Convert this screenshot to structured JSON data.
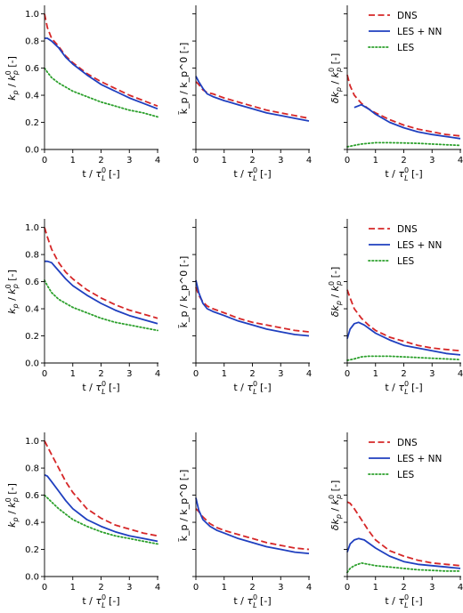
{
  "chart_data": {
    "type": "line",
    "layout": "3x3 grid of line plots",
    "series_styles": {
      "DNS": {
        "color": "#d62728",
        "dash": "dashed"
      },
      "LES + NN": {
        "color": "#1f3fbf",
        "dash": "solid"
      },
      "LES": {
        "color": "#2ca02c",
        "dash": "dotted"
      }
    },
    "legend": {
      "entries": [
        "DNS",
        "LES + NN",
        "LES"
      ],
      "placement": "top-right of right column"
    },
    "xlabel": "t / τ_L^0 [-]",
    "xlim": [
      0,
      4
    ],
    "xticks": [
      "0",
      "1",
      "2",
      "3",
      "4"
    ],
    "columns": [
      {
        "ylabel": "k_p / k_p^0 [-]",
        "ylim": [
          0,
          1.05
        ],
        "yticks": [
          "0.0",
          "0.2",
          "0.4",
          "0.6",
          "0.8",
          "1.0"
        ]
      },
      {
        "ylabel": "k̃_p / k_p^0 [-]",
        "ylim": [
          0,
          1.05
        ],
        "yticks": []
      },
      {
        "ylabel": "δk_p / k_p^0 [-]",
        "ylim": [
          0,
          1.05
        ],
        "yticks": []
      }
    ],
    "panels": [
      {
        "row": 0,
        "col": 0,
        "series": [
          {
            "name": "DNS",
            "x": [
              0,
              0.1,
              0.25,
              0.5,
              0.75,
              1,
              1.5,
              2,
              2.5,
              3,
              3.5,
              4
            ],
            "y": [
              1.0,
              0.9,
              0.82,
              0.76,
              0.69,
              0.64,
              0.56,
              0.5,
              0.45,
              0.4,
              0.36,
              0.32
            ]
          },
          {
            "name": "LES + NN",
            "x": [
              0,
              0.1,
              0.25,
              0.5,
              0.75,
              1,
              1.5,
              2,
              2.5,
              3,
              3.5,
              4
            ],
            "y": [
              0.82,
              0.82,
              0.8,
              0.75,
              0.68,
              0.63,
              0.55,
              0.48,
              0.43,
              0.38,
              0.34,
              0.3
            ]
          },
          {
            "name": "LES",
            "x": [
              0,
              0.1,
              0.25,
              0.5,
              0.75,
              1,
              1.5,
              2,
              2.5,
              3,
              3.5,
              4
            ],
            "y": [
              0.6,
              0.57,
              0.53,
              0.49,
              0.46,
              0.43,
              0.39,
              0.35,
              0.32,
              0.29,
              0.27,
              0.24
            ]
          }
        ]
      },
      {
        "row": 0,
        "col": 1,
        "series": [
          {
            "name": "DNS",
            "x": [
              0,
              0.1,
              0.25,
              0.4,
              0.6,
              1,
              1.5,
              2,
              2.5,
              3,
              3.5,
              4
            ],
            "y": [
              0.5,
              0.48,
              0.44,
              0.42,
              0.41,
              0.38,
              0.35,
              0.32,
              0.29,
              0.27,
              0.25,
              0.23
            ]
          },
          {
            "name": "LES + NN",
            "x": [
              0,
              0.1,
              0.25,
              0.4,
              0.6,
              1,
              1.5,
              2,
              2.5,
              3,
              3.5,
              4
            ],
            "y": [
              0.54,
              0.5,
              0.45,
              0.41,
              0.39,
              0.36,
              0.33,
              0.3,
              0.27,
              0.25,
              0.23,
              0.21
            ]
          }
        ]
      },
      {
        "row": 0,
        "col": 2,
        "series": [
          {
            "name": "DNS",
            "x": [
              0,
              0.1,
              0.25,
              0.5,
              0.75,
              1,
              1.5,
              2,
              2.5,
              3,
              3.5,
              4
            ],
            "y": [
              0.55,
              0.47,
              0.4,
              0.34,
              0.3,
              0.27,
              0.22,
              0.18,
              0.15,
              0.13,
              0.11,
              0.1
            ]
          },
          {
            "name": "LES + NN",
            "x": [
              0.25,
              0.5,
              0.75,
              1,
              1.5,
              2,
              2.5,
              3,
              3.5,
              4
            ],
            "y": [
              0.31,
              0.33,
              0.3,
              0.26,
              0.2,
              0.16,
              0.13,
              0.11,
              0.095,
              0.08
            ]
          },
          {
            "name": "LES",
            "x": [
              0,
              0.25,
              0.5,
              0.75,
              1,
              1.5,
              2,
              2.5,
              3,
              3.5,
              4
            ],
            "y": [
              0.02,
              0.03,
              0.04,
              0.045,
              0.05,
              0.05,
              0.048,
              0.045,
              0.04,
              0.035,
              0.03
            ]
          }
        ]
      },
      {
        "row": 1,
        "col": 0,
        "series": [
          {
            "name": "DNS",
            "x": [
              0,
              0.1,
              0.25,
              0.5,
              0.75,
              1,
              1.5,
              2,
              2.5,
              3,
              3.5,
              4
            ],
            "y": [
              1.0,
              0.93,
              0.84,
              0.74,
              0.67,
              0.62,
              0.54,
              0.48,
              0.43,
              0.39,
              0.36,
              0.33
            ]
          },
          {
            "name": "LES + NN",
            "x": [
              0,
              0.1,
              0.25,
              0.5,
              0.75,
              1,
              1.5,
              2,
              2.5,
              3,
              3.5,
              4
            ],
            "y": [
              0.75,
              0.75,
              0.74,
              0.68,
              0.62,
              0.57,
              0.5,
              0.44,
              0.39,
              0.35,
              0.32,
              0.29
            ]
          },
          {
            "name": "LES",
            "x": [
              0,
              0.1,
              0.25,
              0.5,
              0.75,
              1,
              1.5,
              2,
              2.5,
              3,
              3.5,
              4
            ],
            "y": [
              0.61,
              0.57,
              0.52,
              0.47,
              0.44,
              0.41,
              0.37,
              0.33,
              0.3,
              0.28,
              0.26,
              0.24
            ]
          }
        ]
      },
      {
        "row": 1,
        "col": 1,
        "series": [
          {
            "name": "DNS",
            "x": [
              0,
              0.1,
              0.25,
              0.4,
              0.6,
              1,
              1.5,
              2,
              2.5,
              3,
              3.5,
              4
            ],
            "y": [
              0.56,
              0.5,
              0.45,
              0.42,
              0.4,
              0.37,
              0.33,
              0.3,
              0.28,
              0.26,
              0.24,
              0.23
            ]
          },
          {
            "name": "LES + NN",
            "x": [
              0,
              0.1,
              0.25,
              0.4,
              0.6,
              1,
              1.5,
              2,
              2.5,
              3,
              3.5,
              4
            ],
            "y": [
              0.61,
              0.52,
              0.44,
              0.4,
              0.38,
              0.35,
              0.31,
              0.28,
              0.25,
              0.23,
              0.21,
              0.2
            ]
          }
        ]
      },
      {
        "row": 1,
        "col": 2,
        "series": [
          {
            "name": "DNS",
            "x": [
              0,
              0.1,
              0.25,
              0.5,
              0.75,
              1,
              1.5,
              2,
              2.5,
              3,
              3.5,
              4
            ],
            "y": [
              0.54,
              0.48,
              0.4,
              0.33,
              0.28,
              0.24,
              0.19,
              0.16,
              0.13,
              0.11,
              0.1,
              0.09
            ]
          },
          {
            "name": "LES + NN",
            "x": [
              0,
              0.1,
              0.25,
              0.4,
              0.6,
              0.8,
              1,
              1.5,
              2,
              2.5,
              3,
              3.5,
              4
            ],
            "y": [
              0.18,
              0.25,
              0.29,
              0.3,
              0.28,
              0.25,
              0.22,
              0.17,
              0.13,
              0.11,
              0.09,
              0.07,
              0.06
            ]
          },
          {
            "name": "LES",
            "x": [
              0,
              0.25,
              0.5,
              0.75,
              1,
              1.5,
              2,
              2.5,
              3,
              3.5,
              4
            ],
            "y": [
              0.02,
              0.03,
              0.045,
              0.05,
              0.05,
              0.05,
              0.045,
              0.04,
              0.035,
              0.03,
              0.025
            ]
          }
        ]
      },
      {
        "row": 2,
        "col": 0,
        "series": [
          {
            "name": "DNS",
            "x": [
              0,
              0.1,
              0.25,
              0.5,
              0.75,
              1,
              1.5,
              2,
              2.5,
              3,
              3.5,
              4
            ],
            "y": [
              1.0,
              0.96,
              0.9,
              0.8,
              0.7,
              0.62,
              0.5,
              0.43,
              0.38,
              0.35,
              0.32,
              0.3
            ]
          },
          {
            "name": "LES + NN",
            "x": [
              0,
              0.1,
              0.25,
              0.5,
              0.75,
              1,
              1.5,
              2,
              2.5,
              3,
              3.5,
              4
            ],
            "y": [
              0.75,
              0.74,
              0.7,
              0.63,
              0.56,
              0.5,
              0.42,
              0.37,
              0.33,
              0.3,
              0.28,
              0.26
            ]
          },
          {
            "name": "LES",
            "x": [
              0,
              0.1,
              0.25,
              0.5,
              0.75,
              1,
              1.5,
              2,
              2.5,
              3,
              3.5,
              4
            ],
            "y": [
              0.6,
              0.58,
              0.55,
              0.5,
              0.46,
              0.42,
              0.37,
              0.33,
              0.3,
              0.28,
              0.26,
              0.24
            ]
          }
        ]
      },
      {
        "row": 2,
        "col": 1,
        "series": [
          {
            "name": "DNS",
            "x": [
              0,
              0.1,
              0.25,
              0.5,
              0.75,
              1,
              1.5,
              2,
              2.5,
              3,
              3.5,
              4
            ],
            "y": [
              0.5,
              0.48,
              0.44,
              0.39,
              0.36,
              0.34,
              0.31,
              0.28,
              0.25,
              0.23,
              0.21,
              0.2
            ]
          },
          {
            "name": "LES + NN",
            "x": [
              0,
              0.1,
              0.25,
              0.5,
              0.75,
              1,
              1.5,
              2,
              2.5,
              3,
              3.5,
              4
            ],
            "y": [
              0.58,
              0.49,
              0.42,
              0.37,
              0.34,
              0.32,
              0.28,
              0.25,
              0.22,
              0.2,
              0.18,
              0.17
            ]
          }
        ]
      },
      {
        "row": 2,
        "col": 2,
        "series": [
          {
            "name": "DNS",
            "x": [
              0,
              0.1,
              0.25,
              0.5,
              0.75,
              1,
              1.5,
              2,
              2.5,
              3,
              3.5,
              4
            ],
            "y": [
              0.55,
              0.54,
              0.5,
              0.42,
              0.34,
              0.27,
              0.19,
              0.15,
              0.12,
              0.1,
              0.09,
              0.08
            ]
          },
          {
            "name": "LES + NN",
            "x": [
              0,
              0.1,
              0.25,
              0.4,
              0.6,
              0.8,
              1,
              1.5,
              2,
              2.5,
              3,
              3.5,
              4
            ],
            "y": [
              0.18,
              0.24,
              0.27,
              0.28,
              0.27,
              0.24,
              0.21,
              0.15,
              0.11,
              0.09,
              0.08,
              0.07,
              0.06
            ]
          },
          {
            "name": "LES",
            "x": [
              0,
              0.1,
              0.25,
              0.5,
              0.75,
              1,
              1.5,
              2,
              2.5,
              3,
              3.5,
              4
            ],
            "y": [
              0.03,
              0.06,
              0.08,
              0.1,
              0.09,
              0.08,
              0.07,
              0.06,
              0.05,
              0.045,
              0.04,
              0.04
            ]
          }
        ]
      }
    ]
  }
}
